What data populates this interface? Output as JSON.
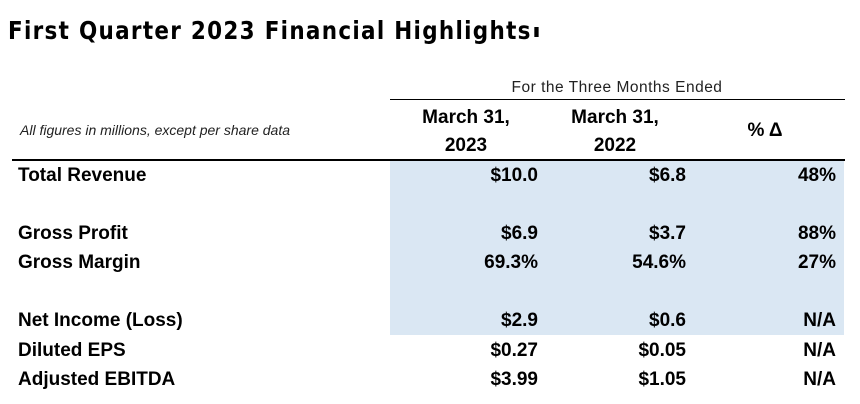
{
  "title": "First Quarter 2023 Financial Highlights",
  "period_header": "For the Three Months Ended",
  "note": "All figures in millions, except per share data",
  "columns": {
    "col1_line1": "March 31,",
    "col1_line2": "2023",
    "col2_line1": "March 31,",
    "col2_line2": "2022",
    "col3": "% Δ"
  },
  "rows": [
    {
      "label": "Total Revenue",
      "v2023": "$10.0",
      "v2022": "$6.8",
      "change": "48%"
    },
    {
      "label": "Gross Profit",
      "v2023": "$6.9",
      "v2022": "$3.7",
      "change": "88%"
    },
    {
      "label": "Gross Margin",
      "v2023": "69.3%",
      "v2022": "54.6%",
      "change": "27%"
    },
    {
      "label": "Net Income (Loss)",
      "v2023": "$2.9",
      "v2022": "$0.6",
      "change": "N/A"
    },
    {
      "label": "Diluted EPS",
      "v2023": "$0.27",
      "v2022": "$0.05",
      "change": "N/A"
    },
    {
      "label": "Adjusted EBITDA",
      "v2023": "$3.99",
      "v2022": "$1.05",
      "change": "N/A"
    }
  ],
  "colors": {
    "highlight": "#dae7f3",
    "text": "#000000"
  }
}
